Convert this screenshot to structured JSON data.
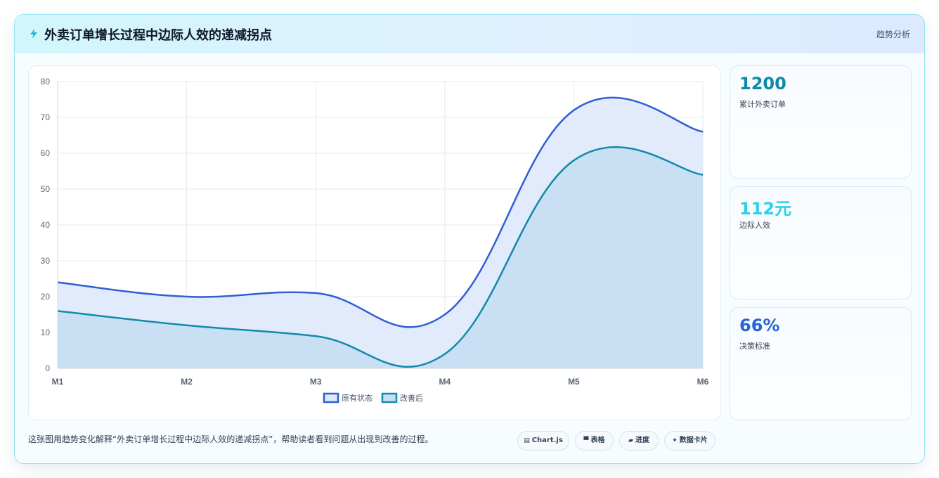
{
  "header": {
    "title": "外卖订单增长过程中边际人效的递减拐点",
    "tag": "趋势分析",
    "icon": "lightning-icon"
  },
  "stats": [
    {
      "value": "1200",
      "label": "累计外卖订单",
      "color": "#0e8aa8"
    },
    {
      "value": "112元",
      "label": "边际人效",
      "color": "#2fd0e6"
    },
    {
      "value": "66%",
      "label": "决策标准",
      "color": "#2563d6"
    }
  ],
  "footer": {
    "description": "这张图用趋势变化解释“外卖订单增长过程中边际人效的递减拐点”，帮助读者看到问题从出现到改善的过程。",
    "chips": [
      {
        "icon": "chart-icon",
        "label": "Chart.js"
      },
      {
        "icon": "table-icon",
        "label": "表格"
      },
      {
        "icon": "progress-icon",
        "label": "进度"
      },
      {
        "icon": "sparkle-icon",
        "label": "数据卡片"
      }
    ]
  },
  "chart_data": {
    "type": "area",
    "categories": [
      "M1",
      "M2",
      "M3",
      "M4",
      "M5",
      "M6"
    ],
    "ylim": [
      0,
      80
    ],
    "yticks": [
      0,
      10,
      20,
      30,
      40,
      50,
      60,
      70,
      80
    ],
    "grid": true,
    "legend": "bottom",
    "series": [
      {
        "name": "原有状态",
        "values": [
          24,
          20,
          21,
          15,
          72,
          66
        ],
        "color": "#2f5fd4",
        "fill": "#dfe9fc"
      },
      {
        "name": "改善后",
        "values": [
          16,
          12,
          9,
          4,
          58,
          54
        ],
        "color": "#138aa8",
        "fill": "#c6def3"
      }
    ]
  }
}
